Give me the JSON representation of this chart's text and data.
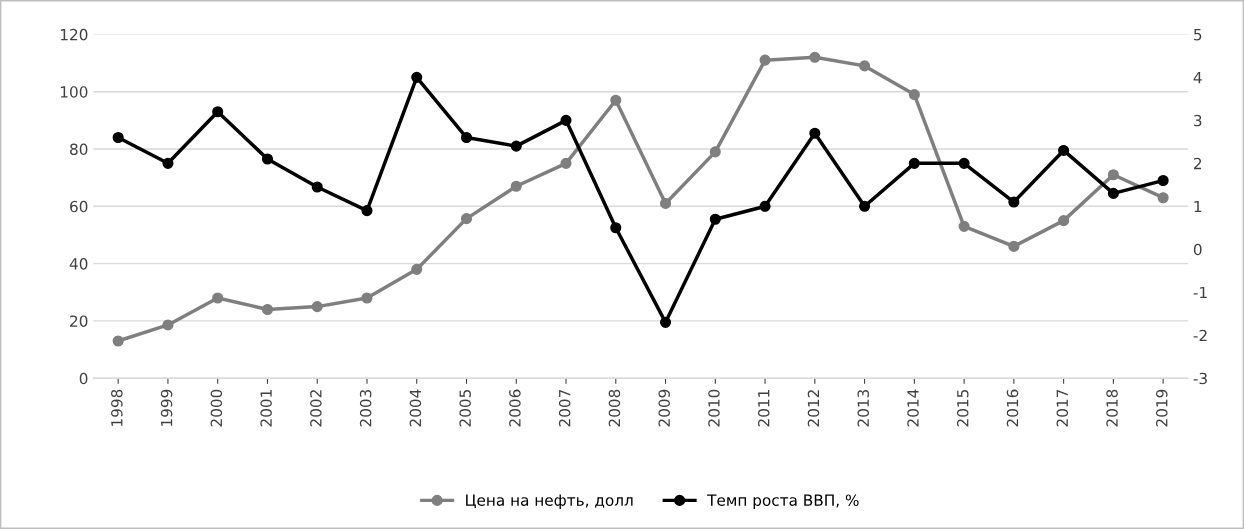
{
  "chart_data": {
    "type": "line",
    "categories": [
      "1998",
      "1999",
      "2000",
      "2001",
      "2002",
      "2003",
      "2004",
      "2005",
      "2006",
      "2007",
      "2008",
      "2009",
      "2010",
      "2011",
      "2012",
      "2013",
      "2014",
      "2015",
      "2016",
      "2017",
      "2018",
      "2019"
    ],
    "series": [
      {
        "name": "Цена на нефть, долл",
        "color": "#7f7f7f",
        "values": [
          13,
          18.6,
          28,
          24,
          25,
          28,
          38,
          55.7,
          67,
          75,
          97,
          61,
          79,
          111,
          112,
          109,
          99,
          53,
          46,
          55,
          71,
          63
        ]
      },
      {
        "name": "Темп роста ВВП, %",
        "color": "#000000",
        "axis": "y2",
        "values": [
          2.6,
          2.0,
          3.2,
          2.1,
          1.45,
          0.9,
          4.0,
          2.6,
          2.4,
          3.0,
          0.5,
          -1.7,
          0.7,
          1.0,
          2.7,
          1.0,
          2.0,
          2.0,
          1.1,
          2.3,
          1.3,
          1.6
        ]
      }
    ],
    "ylim": [
      0,
      120
    ],
    "yticks": [
      0,
      20,
      40,
      60,
      80,
      100,
      120
    ],
    "y2lim": [
      -3,
      5
    ],
    "y2ticks": [
      -3,
      -2,
      -1,
      0,
      1,
      2,
      3,
      4,
      5
    ],
    "grid": "y",
    "legend": "bottom",
    "marker": "circle",
    "line_style": "solid"
  }
}
